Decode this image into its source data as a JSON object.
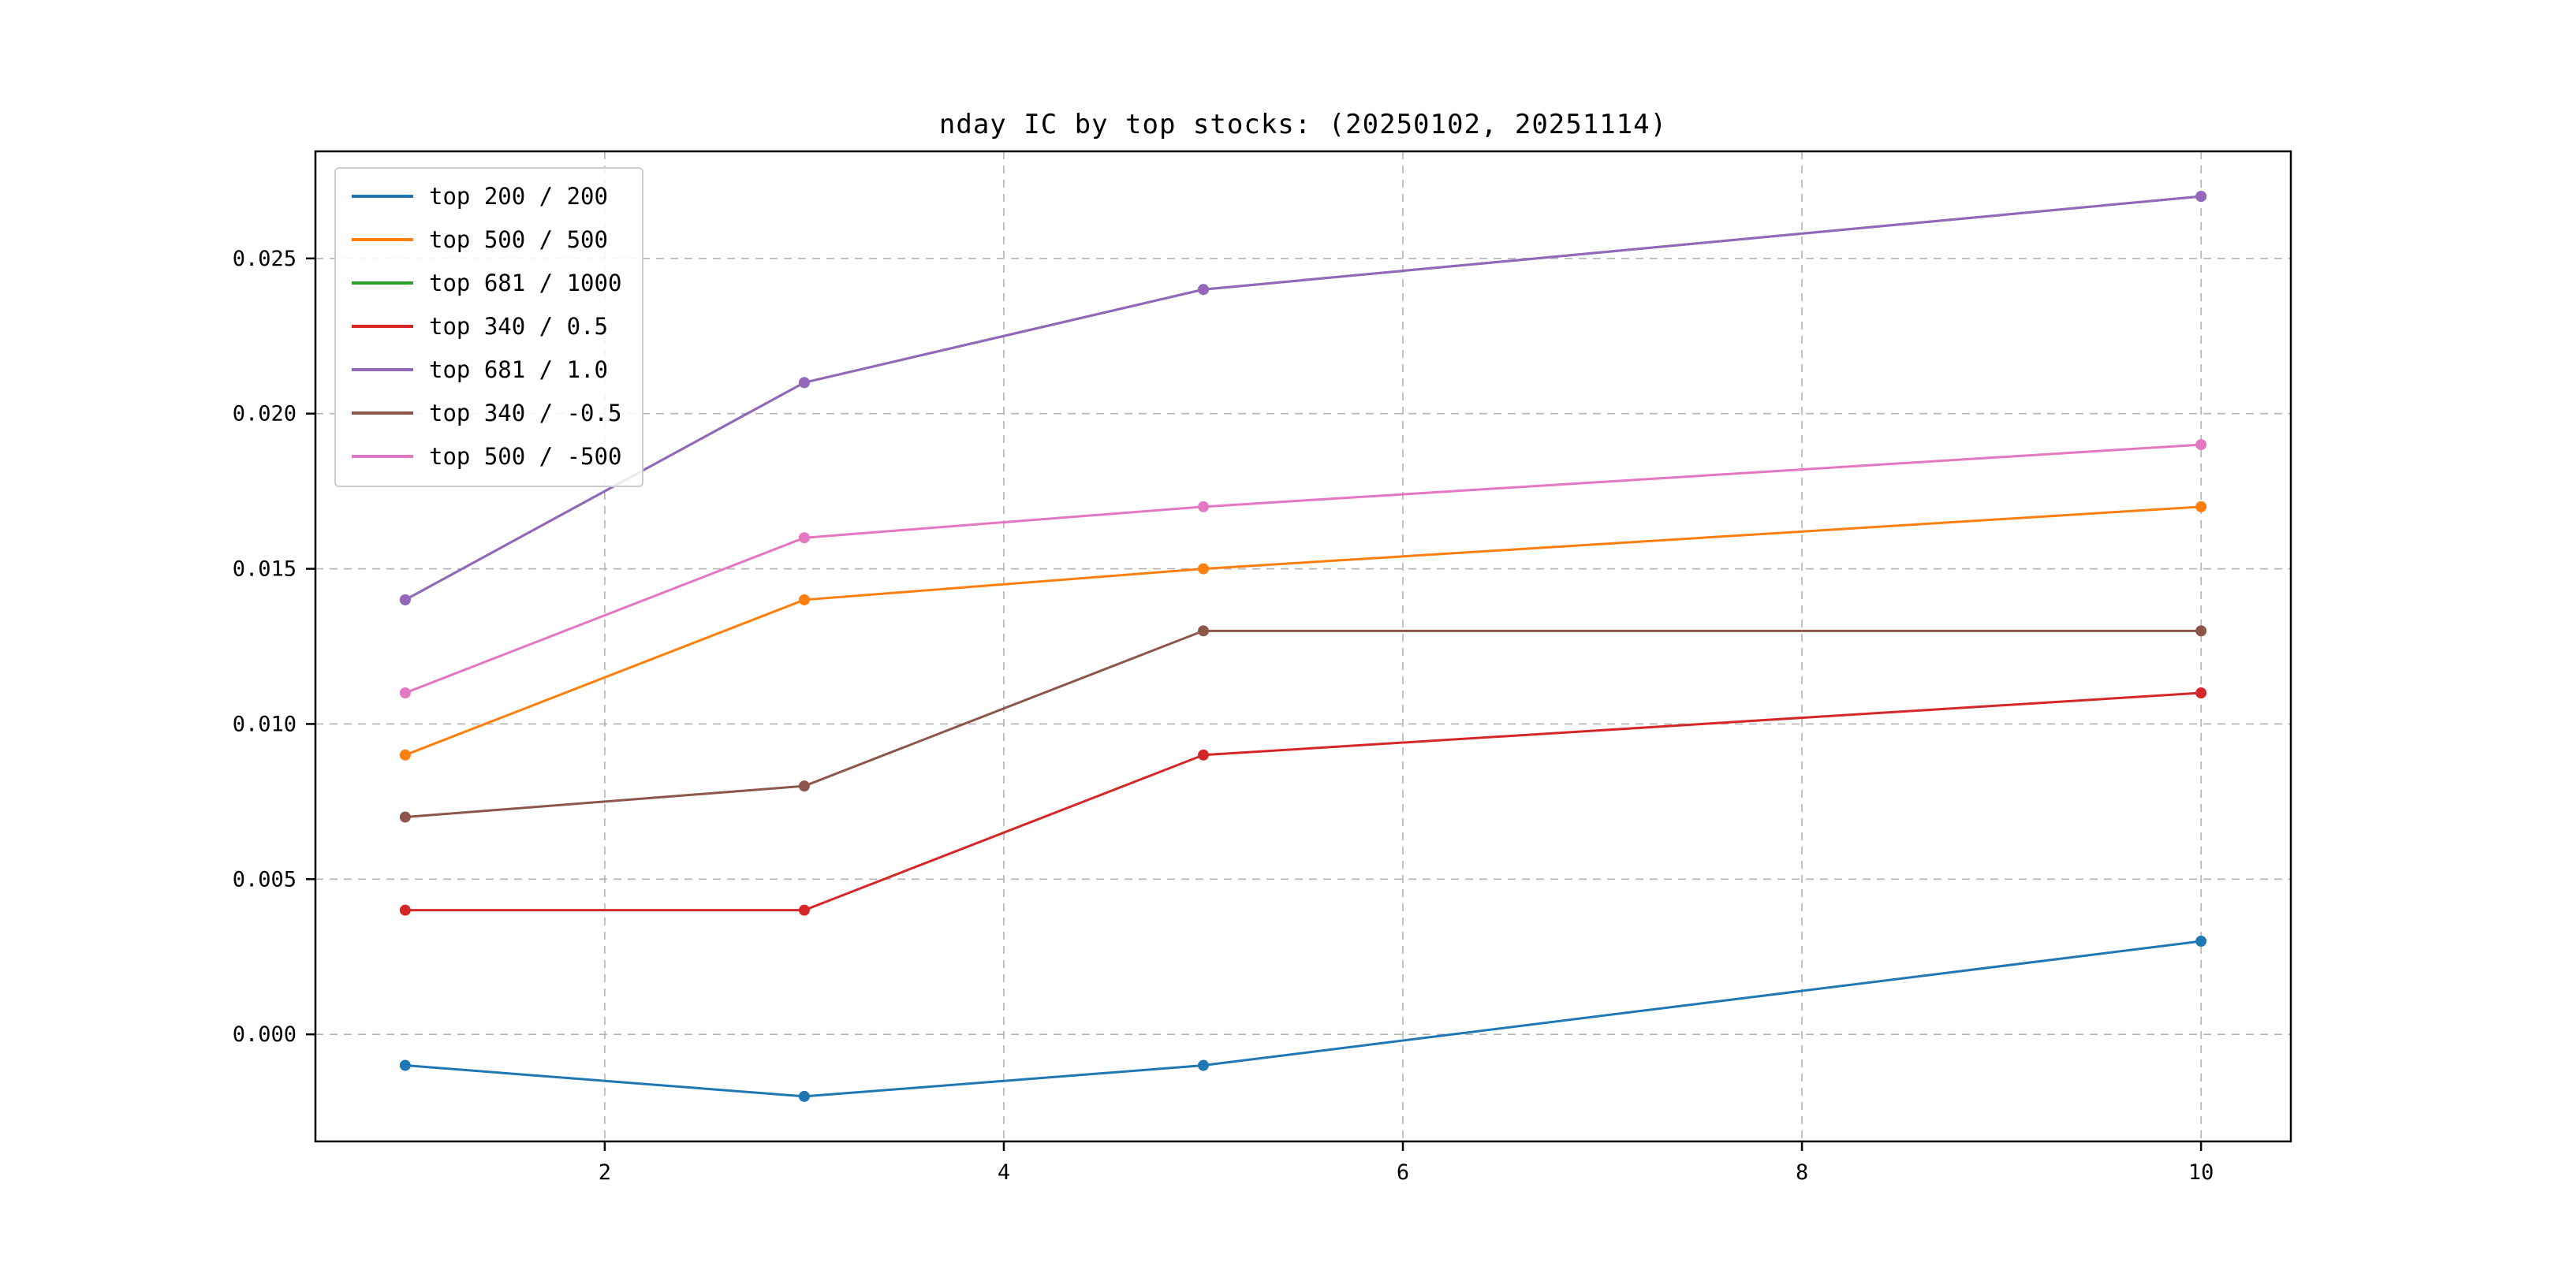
{
  "chart_data": {
    "type": "line",
    "title": "nday IC by top stocks: (20250102, 20251114)",
    "xlabel": "",
    "ylabel": "",
    "x": [
      1,
      3,
      5,
      10
    ],
    "xlim": [
      0.55,
      10.45
    ],
    "ylim": [
      -0.00345,
      0.02845
    ],
    "xticks": [
      2,
      4,
      6,
      8,
      10
    ],
    "yticks": [
      0.0,
      0.005,
      0.01,
      0.015,
      0.02,
      0.025
    ],
    "grid": true,
    "grid_style": "dashed",
    "legend_position": "upper left",
    "marker": "circle",
    "series": [
      {
        "name": "top 200 / 200",
        "color": "#1f77b4",
        "values": [
          -0.001,
          -0.002,
          -0.001,
          0.003
        ]
      },
      {
        "name": "top 500 / 500",
        "color": "#ff7f0e",
        "values": [
          0.009,
          0.014,
          0.015,
          0.017
        ]
      },
      {
        "name": "top 681 / 1000",
        "color": "#2ca02c",
        "values": [
          0.014,
          0.021,
          0.024,
          0.027
        ]
      },
      {
        "name": "top 340 / 0.5",
        "color": "#d62728",
        "values": [
          0.004,
          0.004,
          0.009,
          0.011
        ]
      },
      {
        "name": "top 681 / 1.0",
        "color": "#9467bd",
        "values": [
          0.014,
          0.021,
          0.024,
          0.027
        ]
      },
      {
        "name": "top 340 / -0.5",
        "color": "#8c564b",
        "values": [
          0.007,
          0.008,
          0.013,
          0.013
        ]
      },
      {
        "name": "top 500 / -500",
        "color": "#e377c2",
        "values": [
          0.011,
          0.016,
          0.017,
          0.019
        ]
      }
    ],
    "frame_color": "#000000",
    "grid_color": "#b3b3b3",
    "background": "#ffffff"
  }
}
